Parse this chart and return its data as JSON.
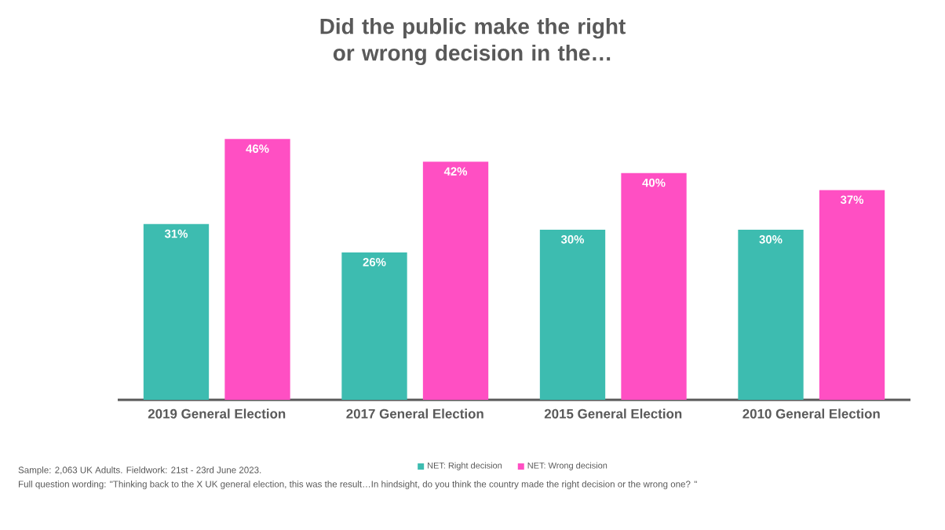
{
  "chart_data": {
    "type": "bar",
    "title": "Did the public make the right or wrong decision in the…",
    "categories": [
      "2019 General Election",
      "2017 General Election",
      "2015 General Election",
      "2010 General Election"
    ],
    "series": [
      {
        "name": "NET: Right decision",
        "color": "#3dbcb0",
        "values": [
          31,
          26,
          30,
          30
        ],
        "value_labels": [
          "31%",
          "26%",
          "30%",
          "30%"
        ]
      },
      {
        "name": "NET: Wrong decision",
        "color": "#ff4fc3",
        "values": [
          46,
          42,
          40,
          37
        ],
        "value_labels": [
          "46%",
          "42%",
          "40%",
          "37%"
        ]
      }
    ],
    "legend": "bottom",
    "annotations": [
      "Sample: 2,063 UK Adults. Fieldwork: 21st - 23rd June 2023.",
      "Full question wording: \"Thinking back to the X UK general election, this was the result…In hindsight, do you think the country made the right decision or the wrong one? \""
    ]
  }
}
